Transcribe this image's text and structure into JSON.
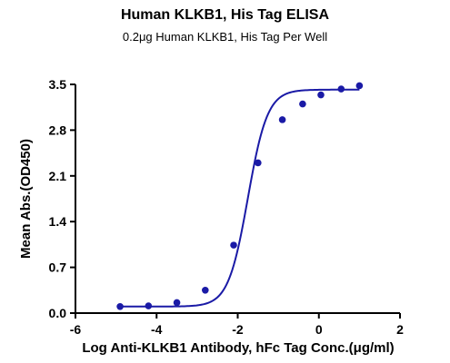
{
  "chart_data": {
    "type": "scatter",
    "title": "Human KLKB1, His Tag ELISA",
    "subtitle": "0.2μg Human KLKB1, His Tag Per Well",
    "xlabel": "Log Anti-KLKB1 Antibody, hFc Tag Conc.(μg/ml)",
    "ylabel": "Mean Abs.(OD450)",
    "xlim": [
      -6,
      2
    ],
    "ylim": [
      0,
      3.5
    ],
    "xticks": [
      -6,
      -4,
      -2,
      0,
      2
    ],
    "xtick_labels": [
      "-6",
      "-4",
      "-2",
      "0",
      "2"
    ],
    "yticks": [
      0,
      0.7,
      1.4,
      2.1,
      2.8,
      3.5
    ],
    "ytick_labels": [
      "0.0",
      "0.7",
      "1.4",
      "2.1",
      "2.8",
      "3.5"
    ],
    "grid": false,
    "series": [
      {
        "x": [
          -4.9,
          -4.2,
          -3.5,
          -2.8,
          -2.1,
          -1.5,
          -0.9,
          -0.4,
          0.05,
          0.55,
          1.0
        ],
        "y": [
          0.1,
          0.11,
          0.16,
          0.35,
          1.04,
          2.3,
          2.96,
          3.2,
          3.34,
          3.43,
          3.48
        ],
        "fit": "4PL"
      }
    ],
    "fit_params": {
      "bottom": 0.1,
      "top": 3.42,
      "ec50_log": -1.75,
      "hill": 1.8
    },
    "colors": {
      "series": "#1a1aa6",
      "axis": "#000000"
    }
  }
}
